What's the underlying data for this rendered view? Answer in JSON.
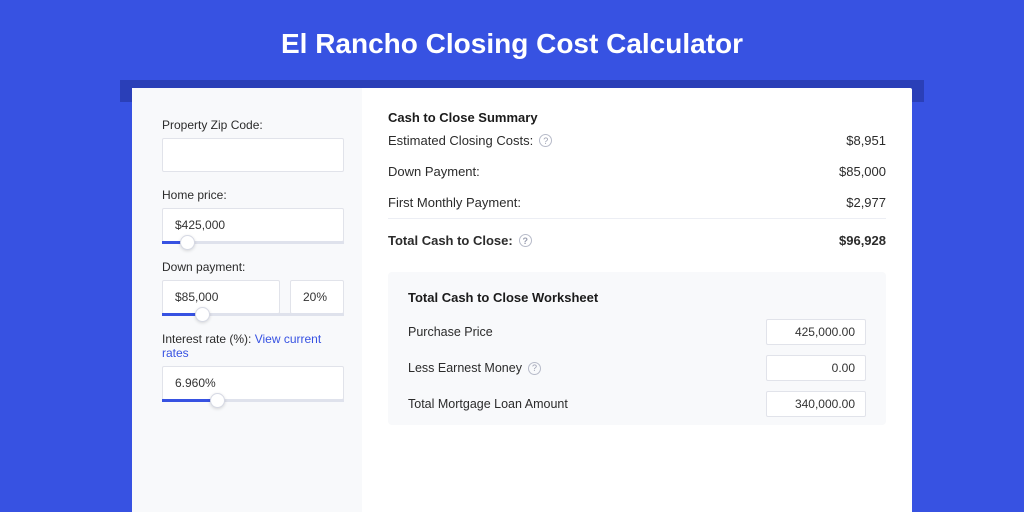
{
  "colors": {
    "page_bg": "#3752e2",
    "shadow_strip": "#2a3fb8",
    "panel_bg": "#ffffff",
    "sidebar_bg": "#f8f9fb",
    "border": "#e1e3ea",
    "text": "#2b2b2b",
    "link": "#3752e2",
    "slider_track": "#dfe2ec",
    "slider_fill": "#3752e2"
  },
  "title": "El Rancho Closing Cost Calculator",
  "inputs": {
    "zip": {
      "label": "Property Zip Code:",
      "value": ""
    },
    "home_price": {
      "label": "Home price:",
      "value": "$425,000",
      "slider_pct": 14
    },
    "down_payment": {
      "label": "Down payment:",
      "value": "$85,000",
      "pct": "20%",
      "slider_pct": 22
    },
    "interest": {
      "label": "Interest rate (%):",
      "link": "View current rates",
      "value": "6.960%",
      "slider_pct": 30
    }
  },
  "summary": {
    "title": "Cash to Close Summary",
    "rows": [
      {
        "label": "Estimated Closing Costs:",
        "hint": true,
        "value": "$8,951"
      },
      {
        "label": "Down Payment:",
        "hint": false,
        "value": "$85,000"
      },
      {
        "label": "First Monthly Payment:",
        "hint": false,
        "value": "$2,977"
      }
    ],
    "total": {
      "label": "Total Cash to Close:",
      "hint": true,
      "value": "$96,928"
    }
  },
  "worksheet": {
    "title": "Total Cash to Close Worksheet",
    "rows": [
      {
        "label": "Purchase Price",
        "hint": false,
        "value": "425,000.00"
      },
      {
        "label": "Less Earnest Money",
        "hint": true,
        "value": "0.00"
      },
      {
        "label": "Total Mortgage Loan Amount",
        "hint": false,
        "value": "340,000.00"
      }
    ]
  }
}
